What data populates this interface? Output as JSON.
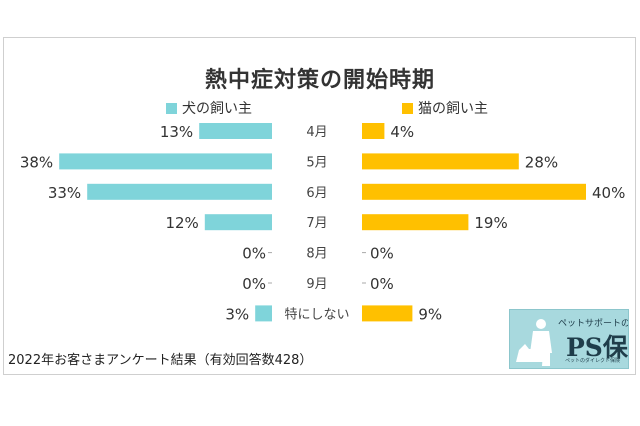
{
  "chart_data": {
    "type": "bar",
    "title": "熱中症対策の開始時期",
    "categories": [
      "4月",
      "5月",
      "6月",
      "7月",
      "8月",
      "9月",
      "特にしない"
    ],
    "series": [
      {
        "name": "犬の飼い主",
        "values": [
          13,
          38,
          33,
          12,
          0,
          0,
          3
        ],
        "labels": [
          "13%",
          "38%",
          "33%",
          "12%",
          "0%",
          "0%",
          "3%"
        ],
        "color": "#7fd4da"
      },
      {
        "name": "猫の飼い主",
        "values": [
          4,
          28,
          40,
          19,
          0,
          0,
          9
        ],
        "labels": [
          "4%",
          "28%",
          "40%",
          "19%",
          "0%",
          "0%",
          "9%"
        ],
        "color": "#ffc000"
      }
    ],
    "legend": "top",
    "grid": false
  },
  "footnote": "2022年お客さまアンケート結果（有効回答数428）",
  "logo": {
    "tagline": "ペットサポートの",
    "brand": "PS保険",
    "sub": "ペットのダイレクト保険",
    "color": "#a8d9de"
  }
}
